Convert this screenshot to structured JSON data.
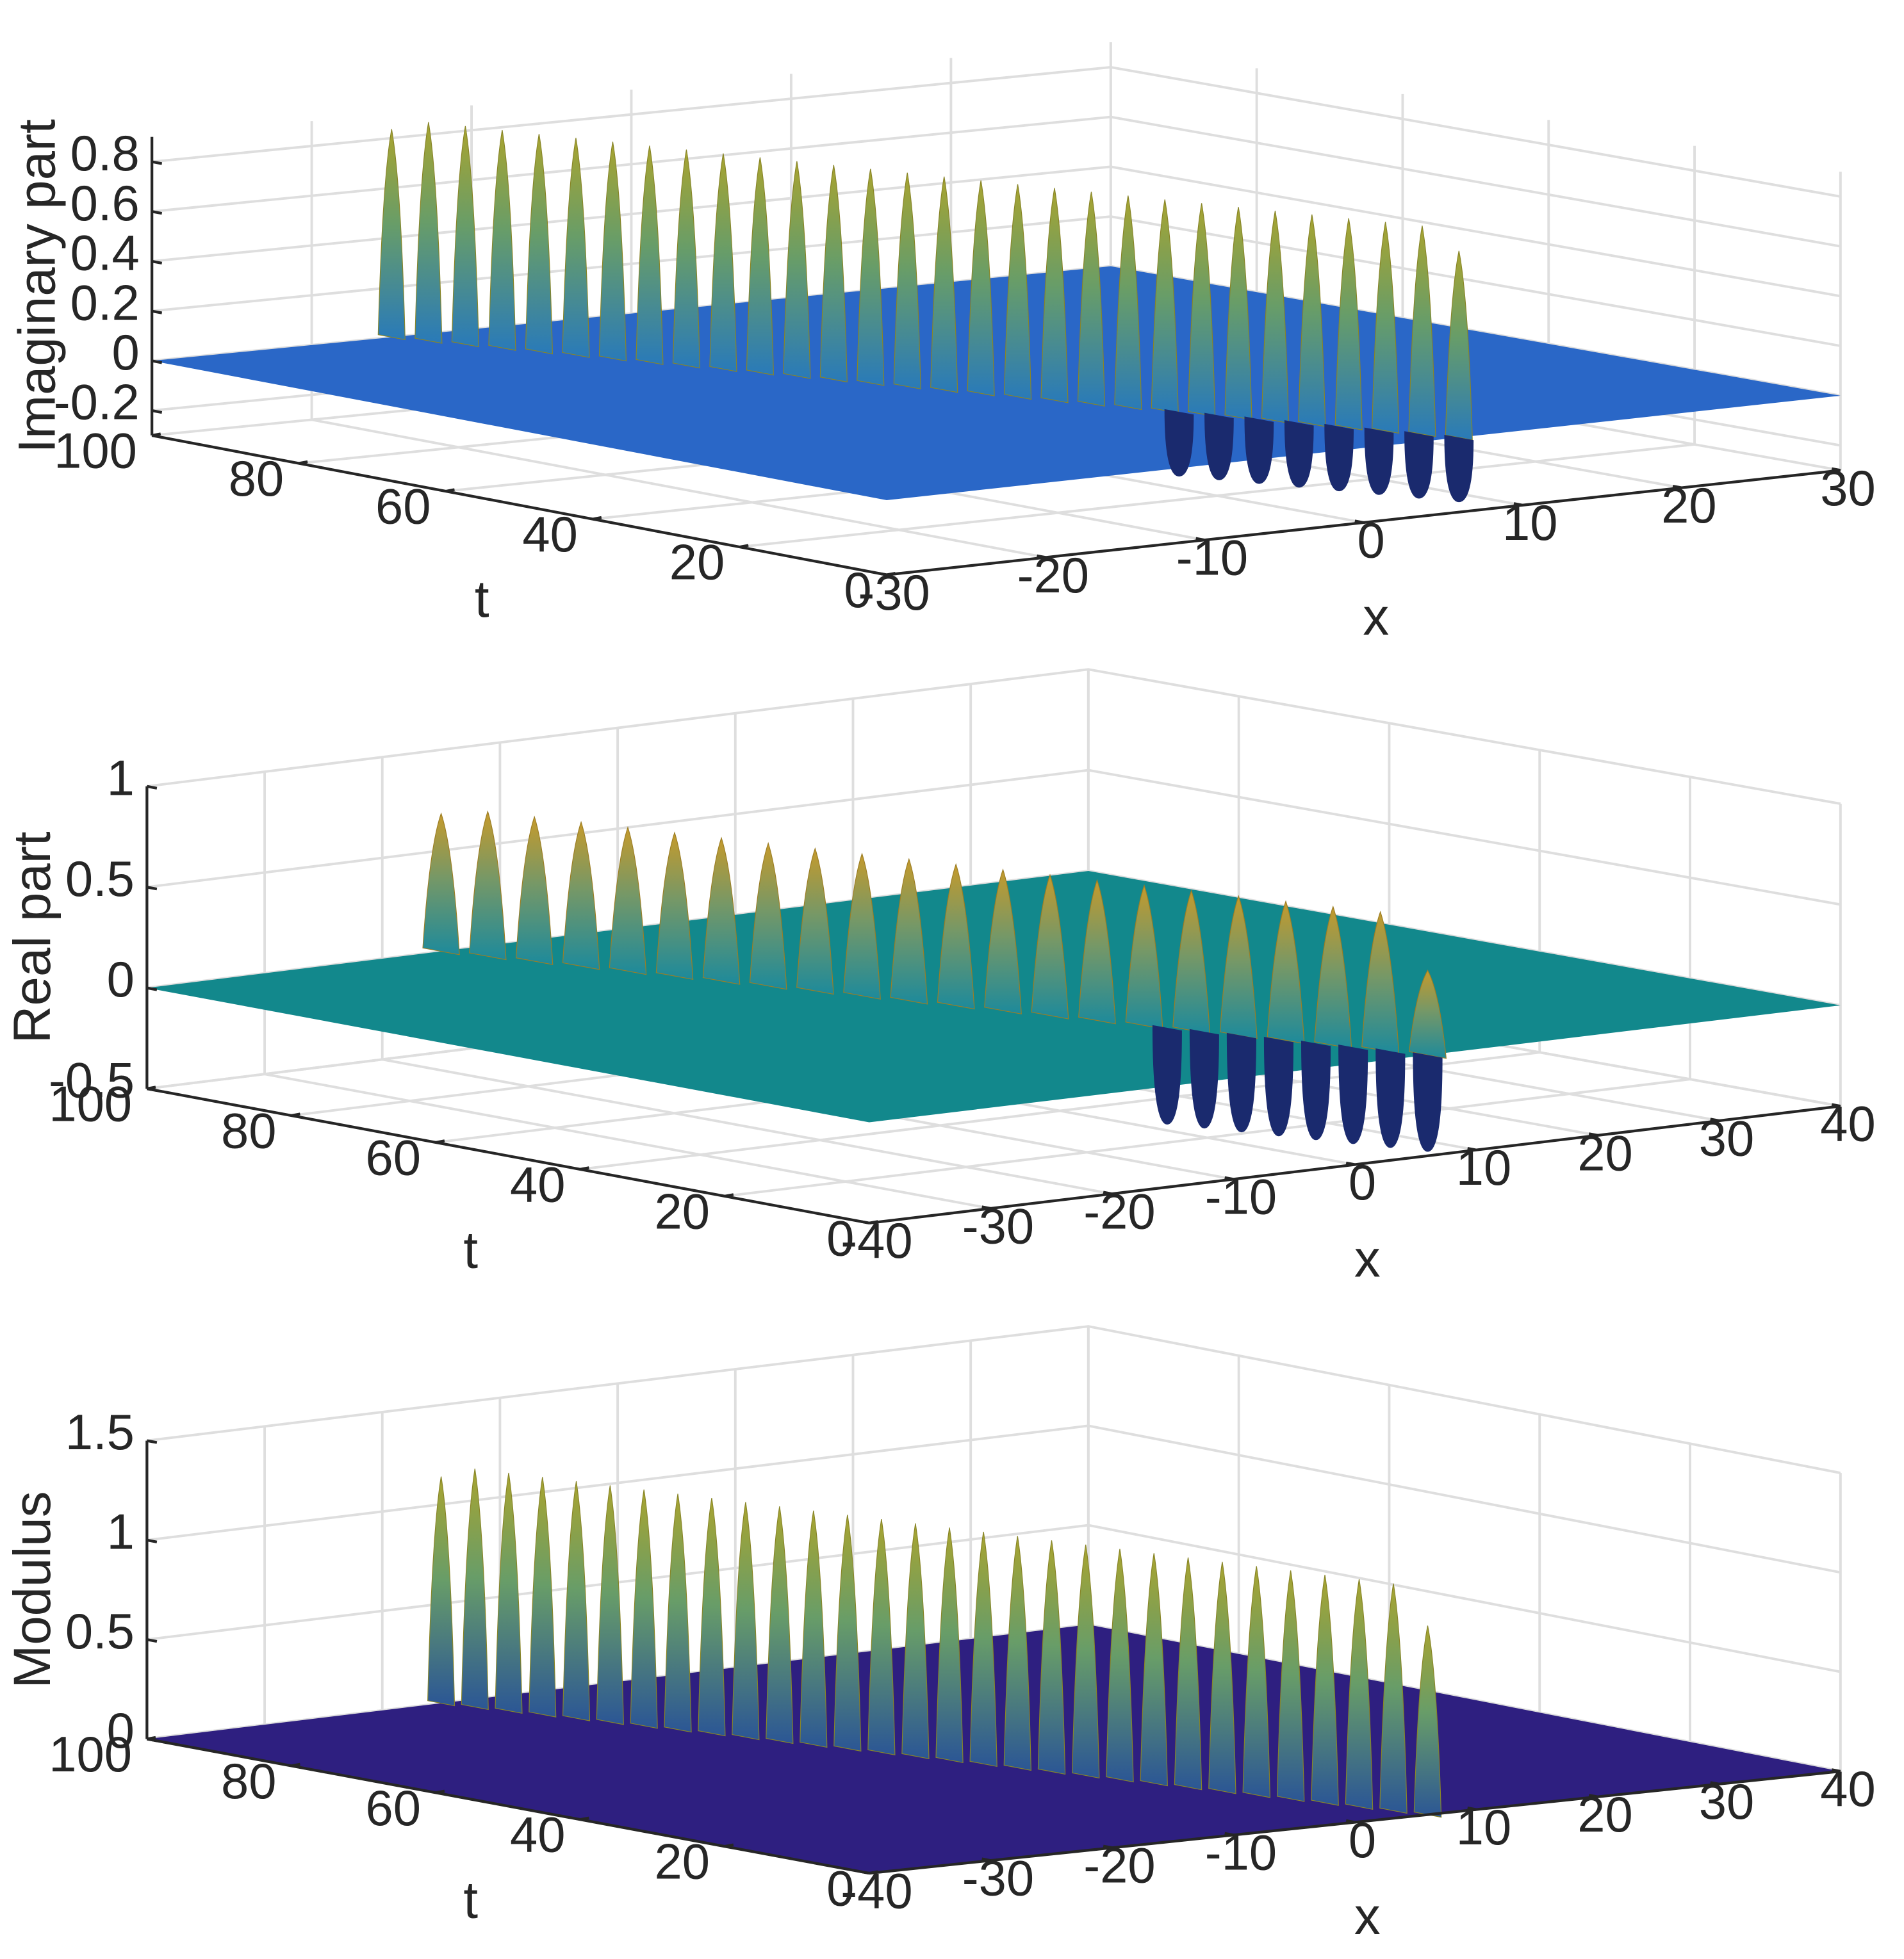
{
  "chart_data": [
    {
      "type": "surface",
      "title": "",
      "xlabel": "x",
      "ylabel": "t",
      "zlabel": "Imaginary part",
      "xlim": [
        -30,
        30
      ],
      "ylim": [
        0,
        100
      ],
      "zlim": [
        -0.3,
        0.9
      ],
      "xticks": [
        -30,
        -20,
        -10,
        0,
        10,
        20,
        30
      ],
      "yticks": [
        0,
        20,
        40,
        60,
        80,
        100
      ],
      "zticks": [
        -0.2,
        0,
        0.2,
        0.4,
        0.6,
        0.8
      ],
      "xticklabels": [
        "-30",
        "-20",
        "-10",
        "0",
        "10",
        "20",
        "30"
      ],
      "yticklabels": [
        "0",
        "20",
        "40",
        "60",
        "80",
        "100"
      ],
      "zticklabels": [
        "-0.2",
        "0",
        "0.2",
        "0.4",
        "0.6",
        "0.8"
      ],
      "grid": true,
      "plane_color": "#2a67c7",
      "peak_color": "#a8a430",
      "trough_color": "#1a2a6e",
      "wave": {
        "x_start": -15,
        "x_end": 6,
        "t_start": 0,
        "t_end": 100,
        "n_peaks": 30,
        "peak_height": 0.88,
        "end_peak_height": 0.75,
        "trough_depth": -0.26,
        "trough_count": 8
      }
    },
    {
      "type": "surface",
      "title": "",
      "xlabel": "x",
      "ylabel": "t",
      "zlabel": "Real part",
      "xlim": [
        -40,
        40
      ],
      "ylim": [
        0,
        100
      ],
      "zlim": [
        -0.5,
        1
      ],
      "xticks": [
        -40,
        -30,
        -20,
        -10,
        0,
        10,
        20,
        30,
        40
      ],
      "yticks": [
        0,
        20,
        40,
        60,
        80,
        100
      ],
      "zticks": [
        -0.5,
        0,
        0.5,
        1
      ],
      "xticklabels": [
        "-40",
        "-30",
        "-20",
        "-10",
        "0",
        "10",
        "20",
        "30",
        "40"
      ],
      "yticklabels": [
        "0",
        "20",
        "40",
        "60",
        "80",
        "100"
      ],
      "zticklabels": [
        "-0.5",
        "0",
        "0.5",
        "1"
      ],
      "grid": true,
      "plane_color": "#12888c",
      "peak_color": "#c59a2c",
      "trough_color": "#1a2a6e",
      "wave": {
        "x_start": -15,
        "x_end": 6,
        "t_start": 0,
        "t_end": 100,
        "n_peaks": 22,
        "peak_height": 0.72,
        "end_peak_height": 0.42,
        "trough_depth": -0.48,
        "trough_count": 8
      }
    },
    {
      "type": "surface",
      "title": "",
      "xlabel": "x",
      "ylabel": "t",
      "zlabel": "Modulus",
      "xlim": [
        -40,
        40
      ],
      "ylim": [
        0,
        100
      ],
      "zlim": [
        0,
        1.5
      ],
      "xticks": [
        -40,
        -30,
        -20,
        -10,
        0,
        10,
        20,
        30,
        40
      ],
      "yticks": [
        0,
        20,
        40,
        60,
        80,
        100
      ],
      "zticks": [
        0,
        0.5,
        1,
        1.5
      ],
      "xticklabels": [
        "-40",
        "-30",
        "-20",
        "-10",
        "0",
        "10",
        "20",
        "30",
        "40"
      ],
      "yticklabels": [
        "0",
        "20",
        "40",
        "60",
        "80",
        "100"
      ],
      "zticklabels": [
        "0",
        "0.5",
        "1",
        "1.5"
      ],
      "grid": true,
      "plane_color": "#2e1f80",
      "peak_color": "#a8a430",
      "trough_color": "#2e1f80",
      "wave": {
        "x_start": -15,
        "x_end": 6,
        "t_start": 0,
        "t_end": 100,
        "n_peaks": 30,
        "peak_height": 1.2,
        "end_peak_height": 0.95,
        "trough_depth": 0,
        "trough_count": 0
      }
    }
  ]
}
